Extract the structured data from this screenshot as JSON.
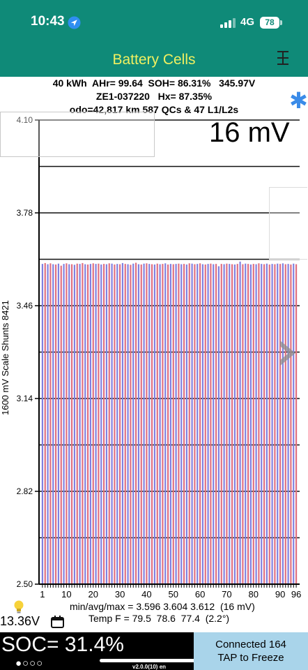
{
  "status_bar": {
    "time": "10:43",
    "network": "4G",
    "battery": "78"
  },
  "app_header": {
    "title": "Battery Cells"
  },
  "summary": {
    "line1": "40 kWh  AHr= 99.64  SOH= 86.31%   345.97V",
    "line2": "ZE1-037220   Hx= 87.35%",
    "line3": "odo=42,817 km 587 QCs & 47 L1/L2s"
  },
  "mv_label": "16 mV",
  "chart_data": {
    "type": "bar",
    "title": "",
    "ylabel": "1600 mV Scale   Shunts 8421",
    "ylim": [
      2.5,
      4.1
    ],
    "y_ticks": [
      {
        "v": 2.5,
        "label": "2.50"
      },
      {
        "v": 2.82,
        "label": "2.82"
      },
      {
        "v": 3.14,
        "label": "3.14"
      },
      {
        "v": 3.46,
        "label": "3.46"
      },
      {
        "v": 3.78,
        "label": "3.78"
      },
      {
        "v": 4.1,
        "label": "4.10"
      }
    ],
    "gridlines": [
      2.66,
      2.82,
      2.98,
      3.14,
      3.3,
      3.46,
      3.62,
      3.78,
      3.94,
      4.1
    ],
    "xlim": [
      1,
      96
    ],
    "x_ticks": [
      1,
      10,
      20,
      30,
      40,
      50,
      60,
      70,
      80,
      90,
      96
    ],
    "series_colors": [
      "#8080e0",
      "#e07080"
    ],
    "cell_count": 96,
    "values": [
      3.604,
      3.607,
      3.603,
      3.606,
      3.603,
      3.602,
      3.605,
      3.598,
      3.604,
      3.606,
      3.603,
      3.603,
      3.601,
      3.605,
      3.604,
      3.607,
      3.603,
      3.602,
      3.604,
      3.606,
      3.604,
      3.605,
      3.602,
      3.604,
      3.603,
      3.606,
      3.605,
      3.602,
      3.604,
      3.603,
      3.607,
      3.604,
      3.603,
      3.601,
      3.605,
      3.608,
      3.603,
      3.602,
      3.605,
      3.606,
      3.604,
      3.603,
      3.602,
      3.605,
      3.603,
      3.604,
      3.606,
      3.602,
      3.604,
      3.603,
      3.604,
      3.605,
      3.603,
      3.604,
      3.602,
      3.606,
      3.605,
      3.603,
      3.604,
      3.606,
      3.603,
      3.602,
      3.604,
      3.605,
      3.603,
      3.604,
      3.596,
      3.604,
      3.603,
      3.605,
      3.604,
      3.603,
      3.602,
      3.604,
      3.612,
      3.603,
      3.605,
      3.604,
      3.602,
      3.604,
      3.603,
      3.606,
      3.604,
      3.603,
      3.605,
      3.602,
      3.604,
      3.603,
      3.605,
      3.604,
      3.606,
      3.603,
      3.604,
      3.602,
      3.605,
      3.603
    ]
  },
  "footer": {
    "voltage": "13.36V",
    "stats_line1": "min/avg/max = 3.596 3.604 3.612  (16 mV)",
    "stats_line2": "Temp F = 79.5  78.6  77.4  (2.2°)",
    "soc": "SOC= 31.4%",
    "dots": "●○○○",
    "version": "v2.0.0(10) en",
    "connect_line1": "Connected 164",
    "connect_line2": "TAP to Freeze"
  },
  "icons": [
    "location-arrow-icon",
    "signal-icon",
    "menu-icon",
    "bluetooth-star-icon",
    "next-chevron-icon",
    "lightbulb-icon",
    "calendar-icon"
  ]
}
